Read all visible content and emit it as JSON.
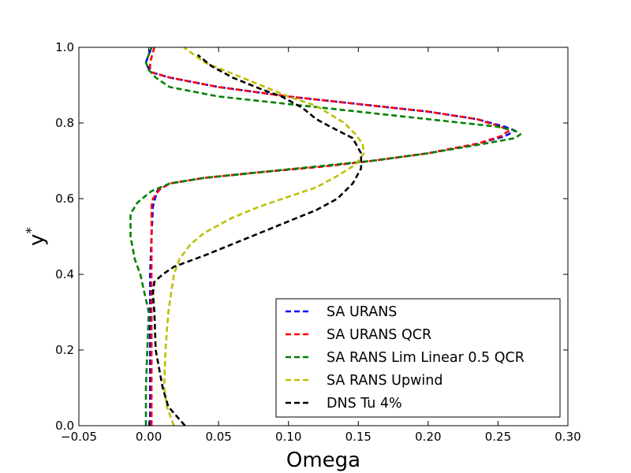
{
  "chart_data": {
    "type": "line",
    "title": "",
    "xlabel": "Omega",
    "ylabel": "y",
    "ylabel_superscript": "*",
    "xlim": [
      -0.05,
      0.3
    ],
    "ylim": [
      0.0,
      1.0
    ],
    "xticks": [
      "−0.05",
      "0.00",
      "0.05",
      "0.10",
      "0.15",
      "0.20",
      "0.25",
      "0.30"
    ],
    "yticks": [
      "0.0",
      "0.2",
      "0.4",
      "0.6",
      "0.8",
      "1.0"
    ],
    "grid": false,
    "legend_position": "lower-right",
    "series": [
      {
        "name": "SA URANS",
        "color": "#0000ff",
        "x": [
          0.001,
          0.001,
          0.001,
          0.001,
          0.001,
          0.002,
          0.003,
          0.006,
          0.015,
          0.04,
          0.08,
          0.125,
          0.16,
          0.2,
          0.235,
          0.255,
          0.262,
          0.255,
          0.235,
          0.2,
          0.15,
          0.1,
          0.05,
          0.015,
          0.001,
          -0.002,
          0.001,
          0.002
        ],
        "y": [
          0.0,
          0.1,
          0.2,
          0.3,
          0.4,
          0.5,
          0.58,
          0.62,
          0.64,
          0.655,
          0.67,
          0.685,
          0.7,
          0.72,
          0.745,
          0.765,
          0.78,
          0.79,
          0.81,
          0.83,
          0.85,
          0.87,
          0.895,
          0.92,
          0.935,
          0.96,
          0.99,
          1.0
        ]
      },
      {
        "name": "SA URANS QCR",
        "color": "#ff0000",
        "x": [
          0.002,
          0.002,
          0.002,
          0.002,
          0.002,
          0.002,
          0.002,
          0.003,
          0.008,
          0.015,
          0.04,
          0.08,
          0.125,
          0.16,
          0.2,
          0.235,
          0.252,
          0.258,
          0.252,
          0.235,
          0.2,
          0.15,
          0.1,
          0.05,
          0.015,
          0.001,
          0.001,
          0.004
        ],
        "y": [
          0.0,
          0.1,
          0.2,
          0.3,
          0.4,
          0.5,
          0.58,
          0.6,
          0.625,
          0.64,
          0.655,
          0.67,
          0.685,
          0.7,
          0.72,
          0.745,
          0.765,
          0.78,
          0.79,
          0.81,
          0.83,
          0.85,
          0.87,
          0.895,
          0.92,
          0.935,
          0.96,
          1.0
        ]
      },
      {
        "name": "SA RANS Lim Linear 0.5 QCR",
        "color": "#008000",
        "x": [
          -0.002,
          -0.002,
          -0.001,
          0.0,
          -0.006,
          -0.01,
          -0.013,
          -0.013,
          -0.008,
          0.002,
          0.015,
          0.04,
          0.08,
          0.12,
          0.16,
          0.2,
          0.24,
          0.262,
          0.266,
          0.262,
          0.25,
          0.2,
          0.15,
          0.1,
          0.05,
          0.015,
          0.005,
          0.0,
          -0.002,
          0.002
        ],
        "y": [
          0.0,
          0.1,
          0.2,
          0.3,
          0.4,
          0.44,
          0.5,
          0.56,
          0.59,
          0.62,
          0.64,
          0.655,
          0.67,
          0.685,
          0.7,
          0.72,
          0.745,
          0.76,
          0.77,
          0.78,
          0.79,
          0.81,
          0.83,
          0.85,
          0.87,
          0.895,
          0.92,
          0.94,
          0.96,
          1.0
        ]
      },
      {
        "name": "SA RANS Upwind",
        "color": "#bfbf00",
        "x": [
          0.018,
          0.013,
          0.011,
          0.012,
          0.014,
          0.018,
          0.022,
          0.03,
          0.04,
          0.06,
          0.08,
          0.1,
          0.12,
          0.135,
          0.148,
          0.154,
          0.153,
          0.148,
          0.14,
          0.12,
          0.1,
          0.08,
          0.06,
          0.04,
          0.025
        ],
        "y": [
          0.0,
          0.05,
          0.1,
          0.2,
          0.3,
          0.4,
          0.44,
          0.48,
          0.51,
          0.55,
          0.58,
          0.605,
          0.63,
          0.66,
          0.69,
          0.72,
          0.745,
          0.77,
          0.8,
          0.845,
          0.87,
          0.9,
          0.93,
          0.96,
          1.0
        ]
      },
      {
        "name": "DNS Tu 4%",
        "color": "#000000",
        "x": [
          0.026,
          0.014,
          0.01,
          0.005,
          0.004,
          0.003,
          0.004,
          0.01,
          0.018,
          0.04,
          0.06,
          0.08,
          0.1,
          0.12,
          0.135,
          0.146,
          0.152,
          0.152,
          0.146,
          0.13,
          0.12,
          0.11,
          0.095,
          0.08,
          0.06,
          0.045,
          0.035
        ],
        "y": [
          0.0,
          0.05,
          0.1,
          0.2,
          0.3,
          0.35,
          0.38,
          0.4,
          0.42,
          0.45,
          0.48,
          0.51,
          0.54,
          0.57,
          0.6,
          0.64,
          0.68,
          0.72,
          0.76,
          0.79,
          0.81,
          0.84,
          0.87,
          0.89,
          0.92,
          0.95,
          0.98
        ]
      }
    ]
  }
}
